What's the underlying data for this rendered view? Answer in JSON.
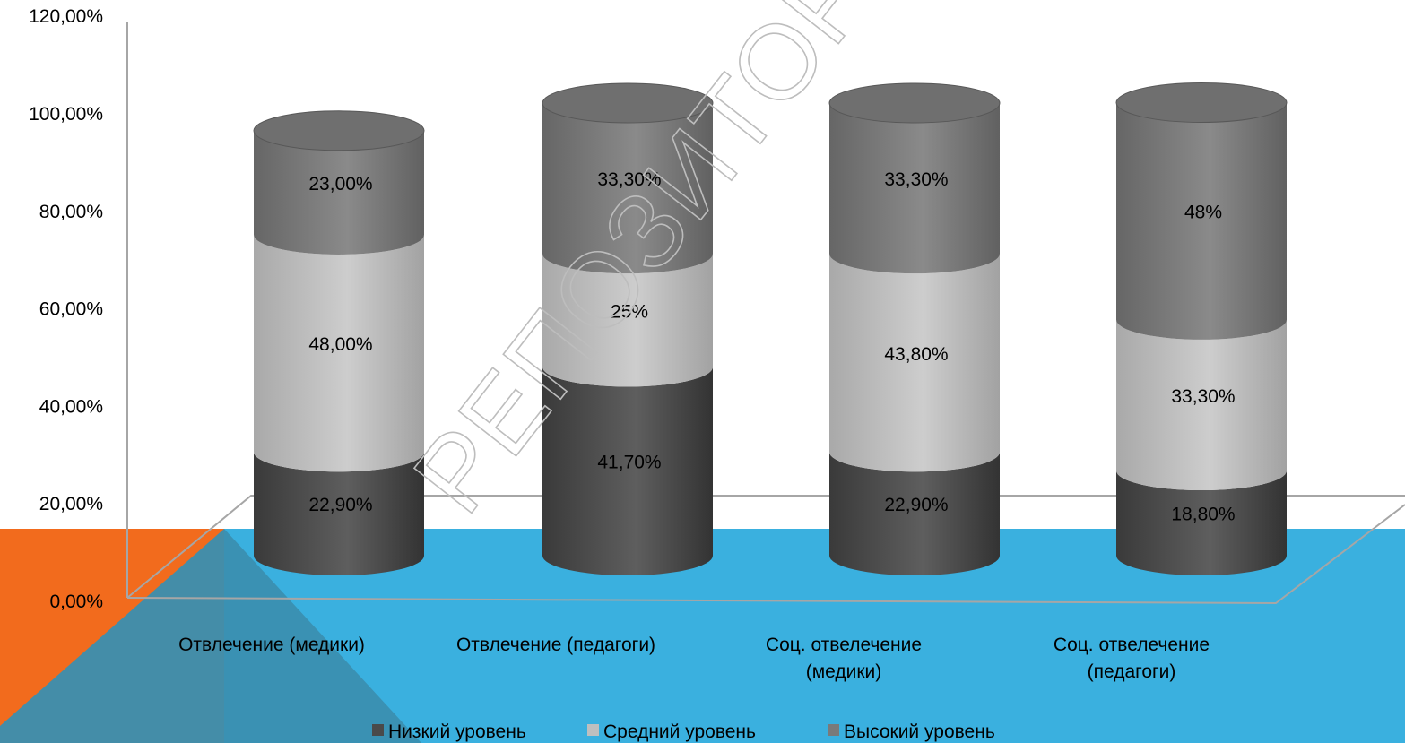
{
  "chart_data": {
    "type": "bar",
    "variant": "stacked-3d-cylinder",
    "categories": [
      [
        "Отвлечение (медики)"
      ],
      [
        "Отвлечение (педагоги)"
      ],
      [
        "Соц. отвелечение",
        "(медики)"
      ],
      [
        "Соц. отвелечение",
        "(педагоги)"
      ]
    ],
    "series": [
      {
        "name": "Низкий уровень",
        "values": [
          22.9,
          41.7,
          22.9,
          18.8
        ],
        "labels": [
          "22,90%",
          "41,70%",
          "22,90%",
          "18,80%"
        ]
      },
      {
        "name": "Средний уровень",
        "values": [
          48.0,
          25.0,
          43.8,
          33.3
        ],
        "labels": [
          "48,00%",
          "25%",
          "43,80%",
          "33,30%"
        ]
      },
      {
        "name": "Высокий уровень",
        "values": [
          23.0,
          33.3,
          33.3,
          48.0
        ],
        "labels": [
          "23,00%",
          "33,30%",
          "33,30%",
          "48%"
        ]
      }
    ],
    "yticks": [
      "0,00%",
      "20,00%",
      "40,00%",
      "60,00%",
      "80,00%",
      "100,00%",
      "120,00%"
    ],
    "ylim": [
      0,
      120
    ],
    "legend_position": "bottom",
    "grid": false
  },
  "colors": {
    "low": "#4a4a4a",
    "medium": "#bfbfbf",
    "high": "#7a7a7a",
    "accent_orange": "#f26b1d",
    "accent_blue": "#3ab0df",
    "accent_teal": "#3a8fb0"
  },
  "watermark": "РЕПОЗИТОРИЙ БГПУ"
}
